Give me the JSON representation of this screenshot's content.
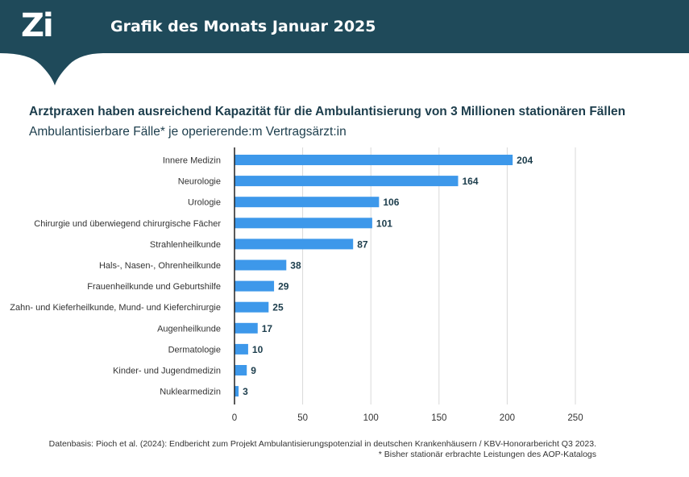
{
  "header": {
    "logo_text": "Zi",
    "title": "Grafik des Monats Januar 2025",
    "band_color": "#1f4a5a"
  },
  "chart_data": {
    "type": "bar",
    "orientation": "horizontal",
    "title": "Arztpraxen haben ausreichend Kapazität für die Ambulantisierung von 3 Millionen stationären Fällen",
    "subtitle": "Ambulantisierbare Fälle* je operierende:m Vertragsärzt:in",
    "categories": [
      "Innere Medizin",
      "Neurologie",
      "Urologie",
      "Chirurgie und überwiegend chirurgische Fächer",
      "Strahlenheilkunde",
      "Hals-, Nasen-, Ohrenheilkunde",
      "Frauenheilkunde und Geburtshilfe",
      "Zahn- und Kieferheilkunde, Mund- und Kieferchirurgie",
      "Augenheilkunde",
      "Dermatologie",
      "Kinder- und Jugendmedizin",
      "Nuklearmedizin"
    ],
    "values": [
      204,
      164,
      106,
      101,
      87,
      38,
      29,
      25,
      17,
      10,
      9,
      3
    ],
    "xlim": [
      0,
      250
    ],
    "xticks": [
      0,
      50,
      100,
      150,
      200,
      250
    ],
    "grid": true,
    "bar_color": "#3d98ea",
    "xlabel": "",
    "ylabel": ""
  },
  "footnote": {
    "source": "Datenbasis: Pioch et al. (2024): Endbericht zum Projekt Ambulantisierungspotenzial in deutschen Krankenhäusern / KBV-Honorarbericht Q3 2023.",
    "note": "* Bisher stationär erbrachte Leistungen des AOP-Katalogs"
  }
}
